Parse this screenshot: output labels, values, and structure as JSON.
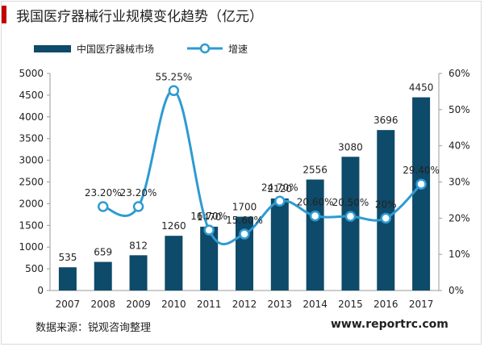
{
  "title": "我国医疗器械行业规模变化趋势（亿元）",
  "source": "数据来源：锐观咨询整理",
  "website": "www.reportrc.com",
  "colors": {
    "bar": "#0e4a6a",
    "line": "#2e9bd1",
    "accent": "#c00000"
  },
  "chart_data": {
    "type": "bar",
    "categories": [
      "2007",
      "2008",
      "2009",
      "2010",
      "2011",
      "2012",
      "2013",
      "2014",
      "2015",
      "2016",
      "2017"
    ],
    "series": [
      {
        "name": "中国医疗器械市场",
        "type": "bar",
        "axis": "left",
        "values": [
          535,
          659,
          812,
          1260,
          1470,
          1700,
          2120,
          2556,
          3080,
          3696,
          4450
        ],
        "labels": [
          "535",
          "659",
          "812",
          "1260",
          "1470",
          "1700",
          "2120",
          "2556",
          "3080",
          "3696",
          "4450"
        ]
      },
      {
        "name": "增速",
        "type": "line",
        "axis": "right",
        "values": [
          null,
          23.2,
          23.2,
          55.25,
          16.7,
          15.6,
          24.7,
          20.6,
          20.5,
          20,
          29.4
        ],
        "labels": [
          "",
          "23.20%",
          "23.20%",
          "55.25%",
          "16.70%",
          "15.60%",
          "24.70%",
          "20.60%",
          "20.50%",
          "20%",
          "29.40%"
        ]
      }
    ],
    "y_left": {
      "min": 0,
      "max": 5000,
      "step": 500,
      "ticks": [
        "0",
        "500",
        "1000",
        "1500",
        "2000",
        "2500",
        "3000",
        "3500",
        "4000",
        "4500",
        "5000"
      ]
    },
    "y_right": {
      "min": 0,
      "max": 60,
      "step": 10,
      "ticks": [
        "0%",
        "10%",
        "20%",
        "30%",
        "40%",
        "50%",
        "60%"
      ]
    },
    "grid": false,
    "legend_position": "top-left"
  }
}
